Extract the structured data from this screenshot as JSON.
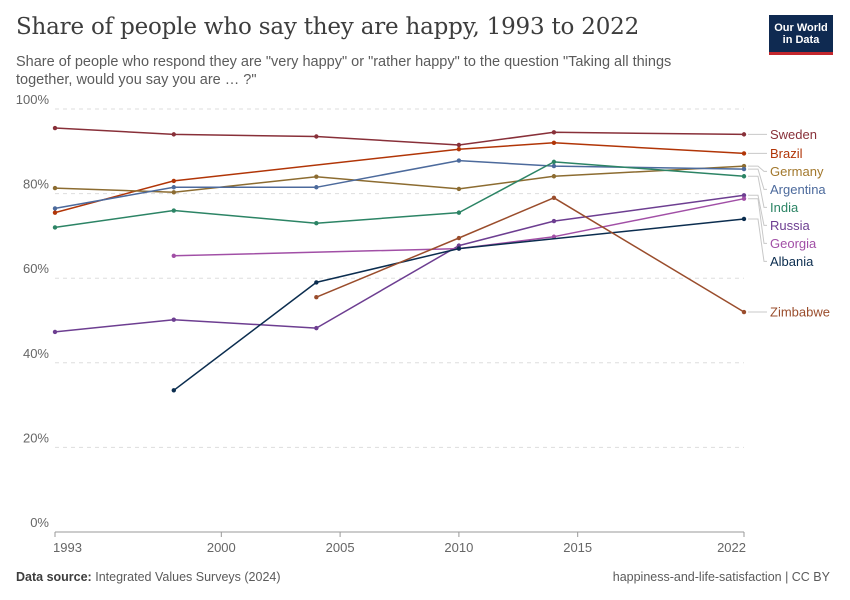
{
  "header": {
    "title": "Share of people who say they are happy, 1993 to 2022",
    "subtitle": "Share of people who respond they are \"very happy\" or \"rather happy\" to the question \"Taking all things together, would you say you are … ?\"",
    "logo_line1": "Our World",
    "logo_line2": "in Data"
  },
  "footer": {
    "source_label": "Data source:",
    "source_value": "Integrated Values Surveys (2024)",
    "right": "happiness-and-life-satisfaction | CC BY"
  },
  "colors": {
    "logo_bg": "#0f2a51",
    "logo_accent": "#c3272d",
    "grid": "#dddddd"
  },
  "chart_data": {
    "type": "line",
    "title": "Share of people who say they are happy, 1993 to 2022",
    "xlabel": "",
    "ylabel": "",
    "xlim": [
      1993,
      2022
    ],
    "ylim": [
      0,
      100
    ],
    "x_ticks": [
      1993,
      2000,
      2005,
      2010,
      2015,
      2022
    ],
    "y_ticks": [
      0,
      20,
      40,
      60,
      80,
      100
    ],
    "y_tick_labels": [
      "0%",
      "20%",
      "40%",
      "60%",
      "80%",
      "100%"
    ],
    "grid": "horizontal dashed",
    "legend": "inline labels at right end of lines",
    "series": [
      {
        "name": "Sweden",
        "color": "#883039",
        "label_color": "#883039",
        "points": [
          [
            1993,
            95.5
          ],
          [
            1998,
            94
          ],
          [
            2004,
            93.5
          ],
          [
            2010,
            91.5
          ],
          [
            2014,
            94.5
          ],
          [
            2022,
            94
          ]
        ]
      },
      {
        "name": "Brazil",
        "color": "#b13507",
        "label_color": "#b13507",
        "points": [
          [
            1993,
            75.5
          ],
          [
            1998,
            83
          ],
          [
            2010,
            90.5
          ],
          [
            2014,
            92
          ],
          [
            2022,
            89.5
          ]
        ]
      },
      {
        "name": "Germany",
        "color": "#8c6c31",
        "label_color": "#a2782d",
        "points": [
          [
            1993,
            81.3
          ],
          [
            1998,
            80.3
          ],
          [
            2004,
            84
          ],
          [
            2010,
            81.1
          ],
          [
            2014,
            84.1
          ],
          [
            2022,
            86.5
          ]
        ]
      },
      {
        "name": "Argentina",
        "color": "#4c6a9c",
        "label_color": "#4c6a9c",
        "points": [
          [
            1993,
            76.5
          ],
          [
            1998,
            81.5
          ],
          [
            2004,
            81.5
          ],
          [
            2010,
            87.8
          ],
          [
            2014,
            86.5
          ],
          [
            2022,
            85.8
          ]
        ]
      },
      {
        "name": "India",
        "color": "#2c8465",
        "label_color": "#2c8465",
        "points": [
          [
            1993,
            72
          ],
          [
            1998,
            76
          ],
          [
            2004,
            73
          ],
          [
            2010,
            75.5
          ],
          [
            2014,
            87.5
          ],
          [
            2022,
            84.1
          ]
        ]
      },
      {
        "name": "Russia",
        "color": "#6d3e91",
        "label_color": "#6d3e91",
        "points": [
          [
            1993,
            47.3
          ],
          [
            1998,
            50.2
          ],
          [
            2004,
            48.2
          ],
          [
            2010,
            67.7
          ],
          [
            2014,
            73.5
          ],
          [
            2022,
            79.6
          ]
        ]
      },
      {
        "name": "Georgia",
        "color": "#a14fa6",
        "label_color": "#a14fa6",
        "points": [
          [
            1998,
            65.3
          ],
          [
            2010,
            67
          ],
          [
            2014,
            69.8
          ],
          [
            2022,
            78.8
          ]
        ]
      },
      {
        "name": "Albania",
        "color": "#0b2d4f",
        "label_color": "#0b2d4f",
        "points": [
          [
            1998,
            33.5
          ],
          [
            2004,
            59
          ],
          [
            2010,
            67
          ],
          [
            2022,
            74
          ]
        ]
      },
      {
        "name": "Zimbabwe",
        "color": "#9a4d2c",
        "label_color": "#9a4d2c",
        "points": [
          [
            2004,
            55.5
          ],
          [
            2010,
            69.5
          ],
          [
            2014,
            79
          ],
          [
            2022,
            52
          ]
        ]
      }
    ]
  }
}
